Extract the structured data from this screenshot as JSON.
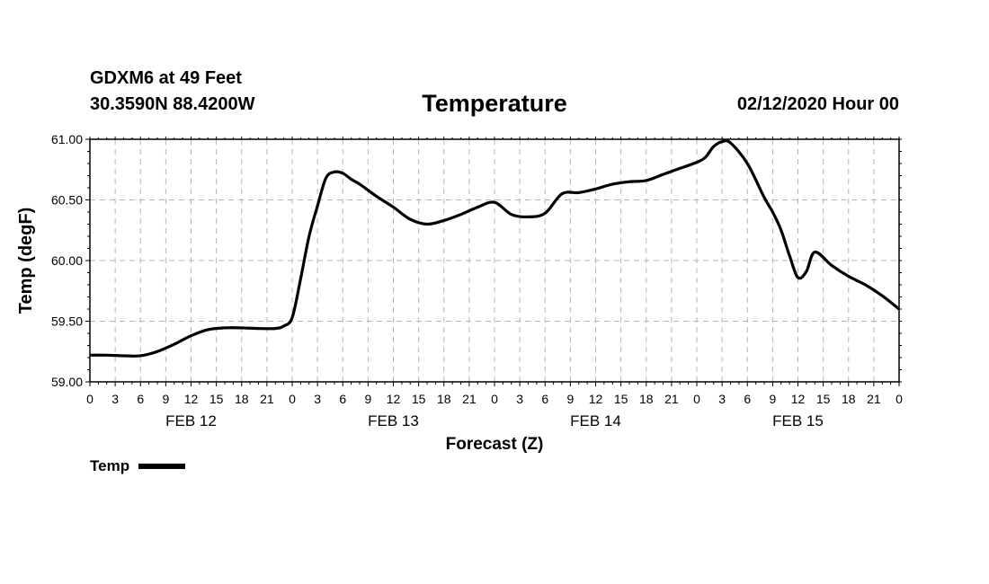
{
  "header": {
    "station": "GDXM6 at 49 Feet",
    "coords": "30.3590N 88.4200W",
    "runtime": "02/12/2020 Hour 00"
  },
  "chart_data": {
    "type": "line",
    "title": "Temperature",
    "xlabel": "Forecast (Z)",
    "ylabel": "Temp (degF)",
    "ylim": [
      59.0,
      61.0
    ],
    "xlim_hours": [
      0,
      96
    ],
    "yticks": [
      "59.00",
      "59.50",
      "60.00",
      "60.50",
      "61.00"
    ],
    "hour_tick_labels": [
      "0",
      "3",
      "6",
      "9",
      "12",
      "15",
      "18",
      "21",
      "0",
      "3",
      "6",
      "9",
      "12",
      "15",
      "18",
      "21",
      "0",
      "3",
      "6",
      "9",
      "12",
      "15",
      "18",
      "21",
      "0",
      "3",
      "6",
      "9",
      "12",
      "15",
      "18",
      "21",
      "0"
    ],
    "day_labels": [
      {
        "label": "FEB 12",
        "hour": 12
      },
      {
        "label": "FEB 13",
        "hour": 36
      },
      {
        "label": "FEB 14",
        "hour": 60
      },
      {
        "label": "FEB 15",
        "hour": 84
      }
    ],
    "grid": true,
    "legend": "bottom-left",
    "series": [
      {
        "name": "Temp",
        "color": "#000000",
        "x": [
          0,
          2,
          4,
          6,
          8,
          10,
          12,
          14,
          16,
          18,
          20,
          22,
          23,
          24,
          25,
          26,
          27,
          28,
          29,
          30,
          31,
          32,
          34,
          36,
          38,
          40,
          42,
          44,
          46,
          48,
          50,
          52,
          54,
          56,
          58,
          60,
          62,
          64,
          66,
          68,
          70,
          72,
          73,
          74,
          75,
          76,
          78,
          80,
          81,
          82,
          83,
          84,
          85,
          86,
          88,
          90,
          92,
          94,
          96
        ],
        "y": [
          59.22,
          59.22,
          59.215,
          59.215,
          59.25,
          59.31,
          59.38,
          59.43,
          59.445,
          59.445,
          59.44,
          59.44,
          59.46,
          59.53,
          59.85,
          60.2,
          60.45,
          60.68,
          60.73,
          60.72,
          60.67,
          60.63,
          60.53,
          60.44,
          60.34,
          60.3,
          60.33,
          60.38,
          60.44,
          60.48,
          60.38,
          60.36,
          60.39,
          60.55,
          60.56,
          60.59,
          60.63,
          60.65,
          60.66,
          60.71,
          60.76,
          60.81,
          60.85,
          60.94,
          60.98,
          60.97,
          60.8,
          60.52,
          60.4,
          60.25,
          60.04,
          59.86,
          59.91,
          60.07,
          59.96,
          59.87,
          59.8,
          59.71,
          59.6
        ]
      }
    ]
  }
}
